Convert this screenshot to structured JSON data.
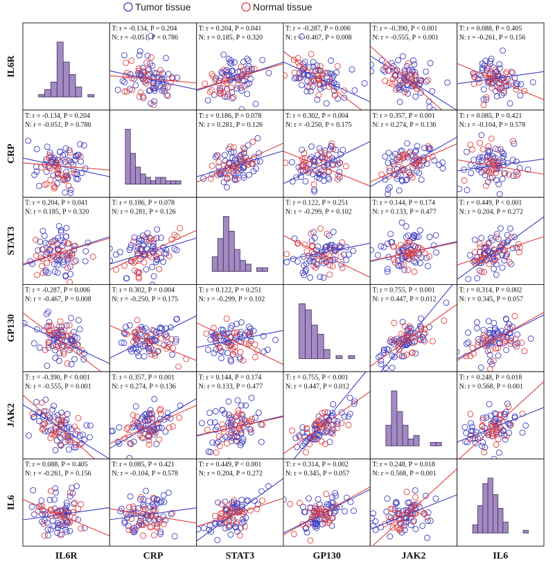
{
  "chart_data": {
    "type": "scatter",
    "variables": [
      "IL6R",
      "CRP",
      "STAT3",
      "GP130",
      "JAK2",
      "IL6"
    ],
    "legend": [
      {
        "name": "Tumor tissue",
        "color": "#3b3bbf"
      },
      {
        "name": "Normal tissue",
        "color": "#e03c3c"
      }
    ],
    "legend_placement": "top",
    "bar_color": "#a48ac2",
    "bar_edge_color": "#3a2a55",
    "grid": false,
    "matrix": [
      [
        "",
        "T: r = -0.134, P = 0.204|N: r = -0.051, P = 0.786",
        "T: r = 0.204, P = 0.041|N: r = 0.185, P = 0.320",
        "T: r = -0.287, P = 0.006|N: r = -0.467, P = 0.008",
        "T: r = -0.390, P < 0.001|N: r = -0.555, P = 0.001",
        "T: r = 0.088, P = 0.405|N: r = -0.261, P = 0.156"
      ],
      [
        "T: r = -0.134, P = 0.204|N: r = -0.051, P = 0.786",
        "",
        "T: r = 0.186, P = 0.078|N: r = 0.281, P = 0.126",
        "T: r = 0.302, P = 0.004|N: r = -0.250, P = 0.175",
        "T: r = 0.357, P = 0.001|N: r = 0.274, P = 0.136",
        "T: r = 0.085, P = 0.421|N: r = -0.104, P = 0.578"
      ],
      [
        "T: r = 0.204, P = 0.041|N: r = 0.185, P = 0.320",
        "T: r = 0.186, P = 0.078|N: r = 0.281, P = 0.126",
        "",
        "T: r = 0.122, P = 0.251|N: r = -0.299, P = 0.102",
        "T: r = 0.144, P = 0.174|N: r = 0.133, P = 0.477",
        "T: r = 0.449, P < 0.001|N: r = 0.204, P = 0.272"
      ],
      [
        "T: r = -0.287, P = 0.006|N: r = -0.467, P = 0.008",
        "T: r = 0.302, P = 0.004|N: r = -0.250, P = 0.175",
        "T: r = 0.122, P = 0.251|N: r = -0.299, P = 0.102",
        "",
        "T: r = 0.755, P < 0.001|N: r = 0.447, P = 0.012",
        "T: r = 0.314, P = 0.002|N: r = 0.345, P = 0.057"
      ],
      [
        "T: r = -0.390, P < 0.001|N: r = -0.555, P = 0.001",
        "T: r = 0.357, P = 0.001|N: r = 0.274, P = 0.136",
        "T: r = 0.144, P = 0.174|N: r = 0.133, P = 0.477",
        "T: r = 0.755, P < 0.001|N: r = 0.447, P = 0.012",
        "",
        "T: r = 0.248, P = 0.018|N: r = 0.568, P = 0.001"
      ],
      [
        "T: r = 0.088, P = 0.405|N: r = -0.261, P = 0.156",
        "T: r = 0.085, P = 0.421|N: r = -0.104, P = 0.578",
        "T: r = 0.449, P < 0.001|N: r = 0.204, P = 0.272",
        "T: r = 0.314, P = 0.002|N: r = 0.345, P = 0.057",
        "T: r = 0.248, P = 0.018|N: r = 0.568, P = 0.001",
        ""
      ]
    ],
    "histograms": {
      "IL6R": [
        1,
        3,
        6,
        22,
        14,
        9,
        4,
        0,
        1
      ],
      "CRP": [
        16,
        9,
        5,
        3,
        2,
        1,
        2,
        2,
        1,
        1,
        1
      ],
      "STAT3": [
        4,
        9,
        15,
        11,
        6,
        3,
        2,
        0,
        1,
        1
      ],
      "GP130": [
        18,
        16,
        11,
        8,
        3,
        0,
        1,
        0,
        1
      ],
      "JAK2": [
        6,
        16,
        10,
        6,
        2,
        3,
        0,
        0,
        1,
        1
      ],
      "IL6": [
        3,
        10,
        18,
        20,
        14,
        9,
        4,
        0,
        0,
        0,
        1
      ]
    }
  }
}
